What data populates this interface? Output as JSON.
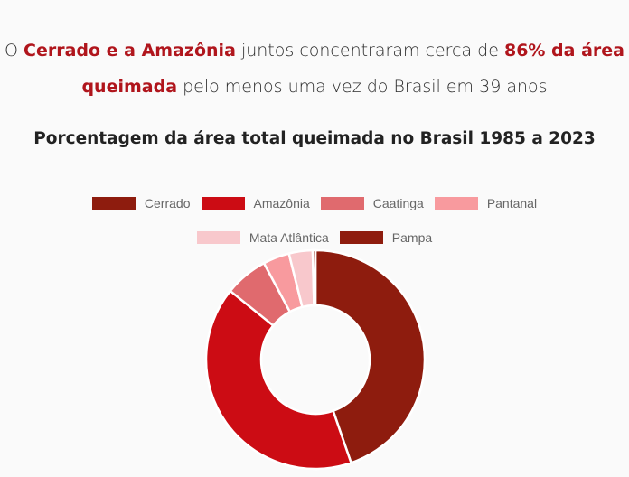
{
  "headline": {
    "part1": "O ",
    "highlight1": "Cerrado e a Amazônia",
    "part2": " juntos concentraram cerca de ",
    "highlight2": "86% da área queimada",
    "part3": " pelo menos uma vez do Brasil em 39 anos"
  },
  "colors": {
    "highlight": "#b0151c",
    "background": "#fafafa"
  },
  "chart_data": {
    "type": "pie",
    "subtype": "donut",
    "title": "Porcentagem da área total queimada no Brasil 1985 a 2023",
    "categories": [
      "Cerrado",
      "Amazônia",
      "Caatinga",
      "Pantanal",
      "Mata Atlântica",
      "Pampa"
    ],
    "values": [
      44.7,
      41.1,
      6.4,
      3.9,
      3.5,
      0.4
    ],
    "colors": [
      "#8e1c0e",
      "#cc0c14",
      "#e06a6e",
      "#f89a9e",
      "#f8c8cc",
      "#8e1c0e"
    ],
    "unit": "%",
    "legend_position": "top",
    "start_angle_deg": 0,
    "direction": "clockwise"
  }
}
